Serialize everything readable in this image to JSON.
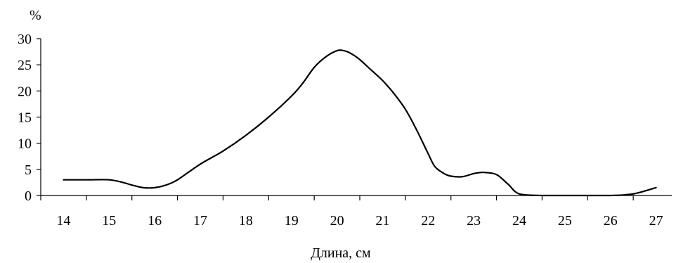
{
  "chart_data": {
    "type": "line",
    "ylabel": "%",
    "xlabel": "Длина, см",
    "xlim": [
      14,
      27
    ],
    "ylim": [
      0,
      30
    ],
    "x_ticks": [
      14,
      15,
      16,
      17,
      18,
      19,
      20,
      21,
      22,
      23,
      24,
      25,
      26,
      27
    ],
    "y_ticks": [
      0,
      5,
      10,
      15,
      20,
      25,
      30
    ],
    "grid": false,
    "series": [
      {
        "color": "#000000",
        "x": [
          14,
          14.5,
          15,
          15.3,
          15.5,
          15.75,
          16,
          16.25,
          16.5,
          17,
          17.5,
          18,
          18.5,
          19,
          19.25,
          19.5,
          19.75,
          20,
          20.15,
          20.3,
          20.5,
          20.75,
          21,
          21.25,
          21.5,
          21.75,
          22,
          22.15,
          22.35,
          22.5,
          22.75,
          23,
          23.15,
          23.25,
          23.5,
          23.75,
          24,
          24.5,
          25,
          25.5,
          26,
          26.5,
          27
        ],
        "y": [
          3,
          3,
          3,
          2.5,
          2,
          1.5,
          1.5,
          2,
          3,
          6,
          8.5,
          11.5,
          15,
          19,
          21.5,
          24.5,
          26.5,
          27.7,
          27.7,
          27.2,
          26,
          24,
          22,
          19.5,
          16.5,
          12.5,
          8,
          5.5,
          4.2,
          3.7,
          3.6,
          4.2,
          4.4,
          4.4,
          4,
          2.2,
          0.3,
          0,
          0,
          0,
          0,
          0.3,
          1.5
        ]
      }
    ]
  }
}
